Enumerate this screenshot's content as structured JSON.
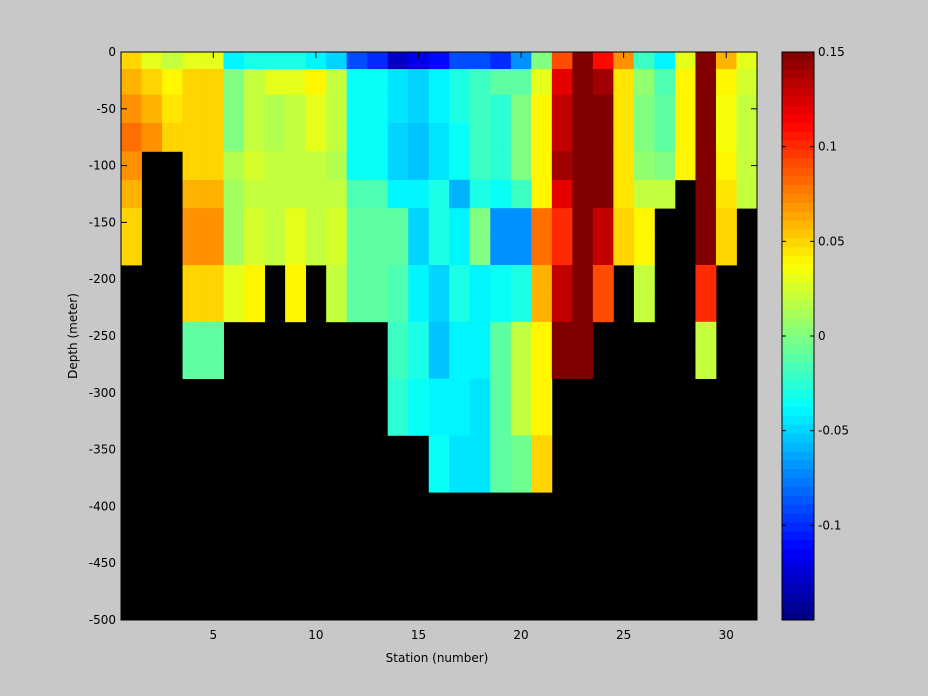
{
  "chart_data": {
    "type": "heatmap",
    "title": "",
    "xlabel": "Station (number)",
    "ylabel": "Depth (meter)",
    "xlim": [
      1,
      31
    ],
    "ylim": [
      -500,
      0
    ],
    "xticks": [
      5,
      10,
      15,
      20,
      25,
      30
    ],
    "xtick_labels": [
      "5",
      "10",
      "15",
      "20",
      "25",
      "30"
    ],
    "yticks": [
      0,
      -50,
      -100,
      -150,
      -200,
      -250,
      -300,
      -350,
      -400,
      -450,
      -500
    ],
    "ytick_labels": [
      "0",
      "-50",
      "-100",
      "-150",
      "-200",
      "-250",
      "-300",
      "-350",
      "-400",
      "-450",
      "-500"
    ],
    "colorbar": {
      "range": [
        -0.15,
        0.15
      ],
      "ticks": [
        0.15,
        0.1,
        0.05,
        0,
        -0.05,
        -0.1
      ],
      "tick_labels": [
        "0.15",
        "0.1",
        "0.05",
        "0",
        "-0.05",
        "-0.1"
      ],
      "colormap": "jet"
    },
    "background_color": "#000000",
    "depth_levels": [
      -5,
      -25,
      -50,
      -75,
      -100,
      -125,
      -150,
      -175,
      -200,
      -225,
      -250,
      -275,
      -300,
      -325,
      -350,
      -375
    ],
    "stations": [
      {
        "x": 1,
        "values": [
          0.05,
          0.06,
          0.07,
          0.08,
          0.07,
          0.06,
          0.05,
          0.05
        ]
      },
      {
        "x": 2,
        "values": [
          0.03,
          0.05,
          0.06,
          0.07
        ]
      },
      {
        "x": 3,
        "values": [
          0.02,
          0.04,
          0.045,
          0.05
        ]
      },
      {
        "x": 4,
        "values": [
          0.03,
          0.05,
          0.05,
          0.05,
          0.05,
          0.06,
          0.07,
          0.07,
          0.05,
          0.05,
          -0.01,
          -0.01
        ]
      },
      {
        "x": 5,
        "values": [
          0.03,
          0.05,
          0.05,
          0.05,
          0.05,
          0.06,
          0.07,
          0.07,
          0.05,
          0.05,
          -0.01,
          -0.01
        ]
      },
      {
        "x": 6,
        "values": [
          -0.04,
          0.0,
          0.0,
          0.0,
          0.015,
          0.01,
          0.01,
          0.01,
          0.03,
          0.03
        ]
      },
      {
        "x": 7,
        "values": [
          -0.03,
          0.02,
          0.02,
          0.02,
          0.025,
          0.02,
          0.025,
          0.025,
          0.04,
          0.04
        ]
      },
      {
        "x": 8,
        "values": [
          -0.03,
          0.03,
          0.015,
          0.015,
          0.02,
          0.02,
          0.02,
          0.02
        ]
      },
      {
        "x": 9,
        "values": [
          -0.03,
          0.03,
          0.02,
          0.02,
          0.02,
          0.02,
          0.03,
          0.03,
          0.04,
          0.04
        ]
      },
      {
        "x": 10,
        "values": [
          -0.04,
          0.04,
          0.03,
          0.03,
          0.02,
          0.02,
          0.02,
          0.02
        ]
      },
      {
        "x": 11,
        "values": [
          -0.05,
          0.02,
          0.02,
          0.02,
          0.015,
          0.02,
          0.025,
          0.025,
          0.02,
          0.02
        ]
      },
      {
        "x": 12,
        "values": [
          -0.09,
          -0.035,
          -0.035,
          -0.035,
          -0.035,
          -0.015,
          -0.01,
          -0.01,
          -0.01,
          -0.01
        ]
      },
      {
        "x": 13,
        "values": [
          -0.1,
          -0.035,
          -0.035,
          -0.035,
          -0.035,
          -0.015,
          -0.01,
          -0.01,
          -0.01,
          -0.01
        ]
      },
      {
        "x": 14,
        "values": [
          -0.13,
          -0.045,
          -0.045,
          -0.05,
          -0.05,
          -0.04,
          -0.01,
          -0.01,
          -0.015,
          -0.015,
          -0.02,
          -0.02,
          -0.025,
          -0.025
        ]
      },
      {
        "x": 15,
        "values": [
          -0.12,
          -0.05,
          -0.05,
          -0.055,
          -0.055,
          -0.04,
          -0.05,
          -0.05,
          -0.04,
          -0.04,
          -0.03,
          -0.03,
          -0.035,
          -0.035
        ]
      },
      {
        "x": 16,
        "values": [
          -0.11,
          -0.04,
          -0.04,
          -0.045,
          -0.045,
          -0.03,
          -0.03,
          -0.03,
          -0.05,
          -0.05,
          -0.055,
          -0.055,
          -0.04,
          -0.04,
          -0.035,
          -0.035
        ]
      },
      {
        "x": 17,
        "values": [
          -0.09,
          -0.03,
          -0.03,
          -0.035,
          -0.035,
          -0.06,
          -0.04,
          -0.04,
          -0.03,
          -0.03,
          -0.04,
          -0.04,
          -0.04,
          -0.04,
          -0.045,
          -0.045
        ]
      },
      {
        "x": 18,
        "values": [
          -0.09,
          -0.02,
          -0.02,
          -0.02,
          -0.02,
          -0.03,
          0.0,
          0.0,
          -0.04,
          -0.04,
          -0.04,
          -0.04,
          -0.045,
          -0.045,
          -0.045,
          -0.045
        ]
      },
      {
        "x": 19,
        "values": [
          -0.1,
          -0.01,
          -0.025,
          -0.025,
          -0.025,
          -0.035,
          -0.07,
          -0.07,
          -0.035,
          -0.035,
          -0.01,
          -0.01,
          -0.01,
          -0.01,
          -0.01,
          -0.01
        ]
      },
      {
        "x": 20,
        "values": [
          -0.07,
          -0.01,
          0.0,
          0.0,
          0.0,
          -0.02,
          -0.07,
          -0.07,
          -0.03,
          -0.03,
          0.02,
          0.02,
          0.02,
          0.02,
          -0.005,
          -0.005
        ]
      },
      {
        "x": 21,
        "values": [
          0.0,
          0.03,
          0.04,
          0.04,
          0.04,
          0.04,
          0.08,
          0.08,
          0.06,
          0.06,
          0.04,
          0.04,
          0.04,
          0.04,
          0.05,
          0.05
        ]
      },
      {
        "x": 22,
        "values": [
          0.09,
          0.12,
          0.13,
          0.13,
          0.14,
          0.12,
          0.1,
          0.1,
          0.13,
          0.13,
          0.15,
          0.15
        ]
      },
      {
        "x": 23,
        "values": [
          0.15,
          0.15,
          0.15,
          0.15,
          0.15,
          0.15,
          0.15,
          0.15,
          0.15,
          0.15,
          0.15,
          0.15
        ]
      },
      {
        "x": 24,
        "values": [
          0.11,
          0.14,
          0.15,
          0.15,
          0.15,
          0.15,
          0.13,
          0.13,
          0.09,
          0.09
        ]
      },
      {
        "x": 25,
        "values": [
          0.07,
          0.045,
          0.045,
          0.045,
          0.045,
          0.045,
          0.05,
          0.05
        ]
      },
      {
        "x": 26,
        "values": [
          -0.02,
          0.005,
          0.0,
          0.0,
          0.005,
          0.02,
          0.04,
          0.04,
          0.02,
          0.02
        ]
      },
      {
        "x": 27,
        "values": [
          -0.04,
          -0.015,
          -0.01,
          -0.01,
          0.0,
          0.02
        ]
      },
      {
        "x": 28,
        "values": [
          0.03,
          0.04,
          0.04,
          0.04,
          0.04
        ]
      },
      {
        "x": 29,
        "values": [
          0.15,
          0.15,
          0.15,
          0.15,
          0.15,
          0.15,
          0.15,
          0.15,
          0.1,
          0.1,
          0.02,
          0.02
        ]
      },
      {
        "x": 30,
        "values": [
          0.06,
          0.04,
          0.035,
          0.035,
          0.04,
          0.045,
          0.05,
          0.05
        ]
      },
      {
        "x": 31,
        "values": [
          0.03,
          0.025,
          0.02,
          0.02,
          0.02,
          0.02
        ]
      }
    ]
  }
}
